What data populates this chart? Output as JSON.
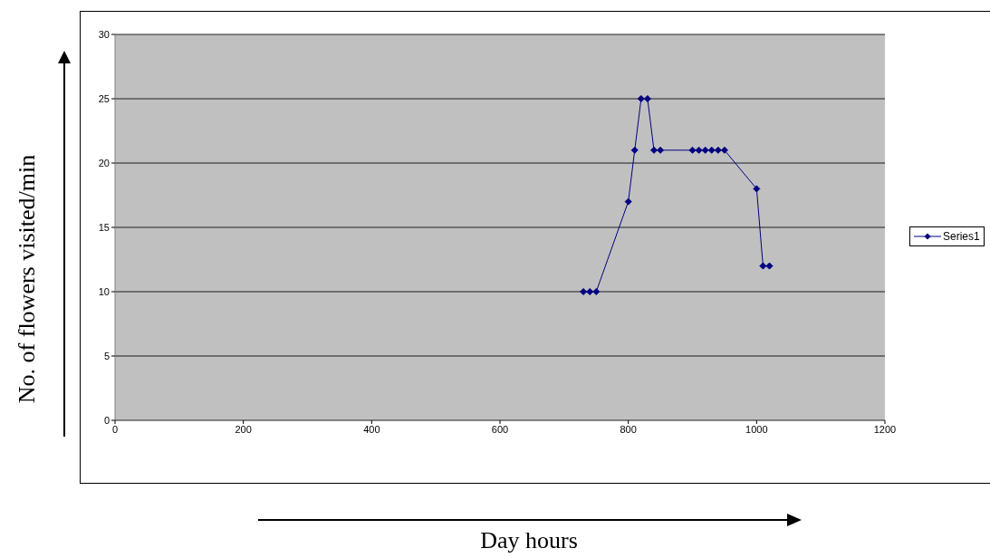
{
  "chart_data": {
    "type": "line",
    "xlabel": "Day hours",
    "ylabel": "No. of flowers visited/min",
    "x": [
      730,
      740,
      750,
      800,
      810,
      820,
      830,
      840,
      850,
      900,
      910,
      920,
      930,
      940,
      950,
      1000,
      1010,
      1020
    ],
    "series": [
      {
        "name": "Series1",
        "color": "#000080",
        "values": [
          10,
          10,
          10,
          17,
          21,
          25,
          25,
          21,
          21,
          21,
          21,
          21,
          21,
          21,
          21,
          18,
          12,
          12
        ]
      }
    ],
    "xlim": [
      0,
      1200
    ],
    "xticks": [
      0,
      200,
      400,
      600,
      800,
      1000,
      1200
    ],
    "ylim": [
      0,
      30
    ],
    "yticks": [
      0,
      5,
      10,
      15,
      20,
      25,
      30
    ],
    "grid": "y",
    "legend": "right",
    "marker": "diamond",
    "line_style": "solid"
  }
}
